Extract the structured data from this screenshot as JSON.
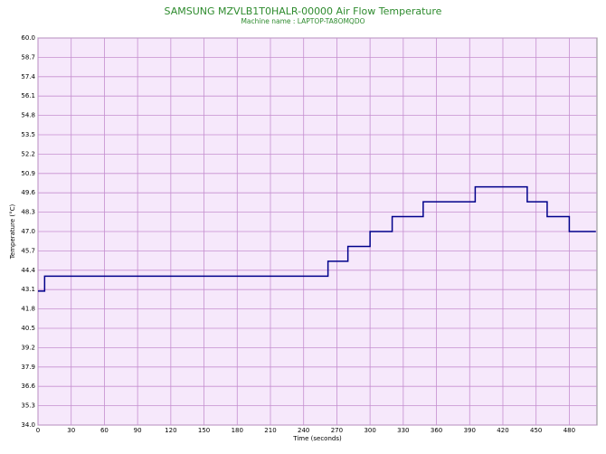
{
  "chart_data": {
    "type": "step-line",
    "title": "SAMSUNG MZVLB1T0HALR-00000 Air Flow Temperature",
    "subtitle": "Machine name : LAPTOP-TA8OMQDO",
    "x_label": "Time (seconds)",
    "y_label": "Temperature (°C)",
    "color": "#00008b",
    "grid": true,
    "x": [
      0,
      6,
      6,
      262,
      262,
      280,
      280,
      300,
      300,
      320,
      320,
      348,
      348,
      395,
      395,
      442,
      442,
      460,
      460,
      480,
      480,
      504
    ],
    "values": [
      43,
      43,
      44,
      44,
      45,
      45,
      46,
      46,
      47,
      47,
      48,
      48,
      49,
      49,
      50,
      50,
      49,
      49,
      48,
      48,
      47,
      47
    ],
    "xlim": [
      0,
      505
    ],
    "xticks": [
      0,
      30,
      60,
      90,
      120,
      150,
      180,
      210,
      240,
      270,
      300,
      330,
      360,
      390,
      420,
      450,
      480
    ],
    "ylim": [
      34,
      60
    ],
    "yticks": [
      {
        "value": 60,
        "label": "60.0"
      },
      58.7,
      57.4,
      56.1,
      54.8,
      53.5,
      52.2,
      50.9,
      49.6,
      48.3,
      {
        "value": 47,
        "label": "47.0"
      },
      45.7,
      44.4,
      43.1,
      41.8,
      40.5,
      39.2,
      37.9,
      36.6,
      35.3,
      {
        "value": 34,
        "label": "34.0"
      }
    ]
  }
}
